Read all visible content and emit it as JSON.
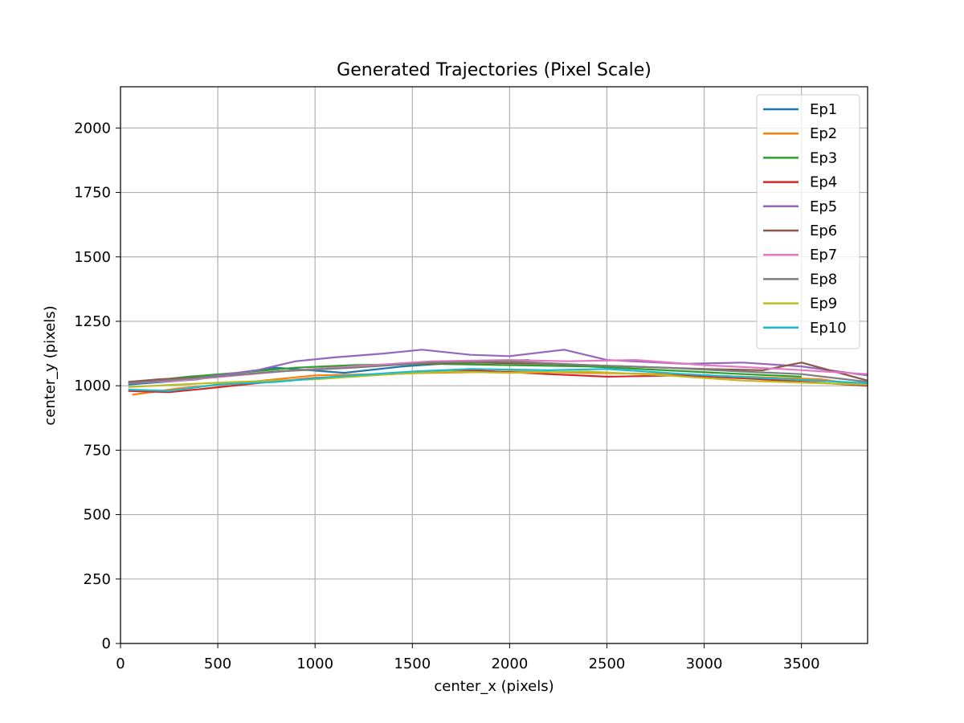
{
  "chart_data": {
    "type": "line",
    "title": "Generated Trajectories (Pixel Scale)",
    "xlabel": "center_x (pixels)",
    "ylabel": "center_y (pixels)",
    "xlim": [
      0,
      3840
    ],
    "ylim": [
      0,
      2160
    ],
    "xticks": [
      0,
      500,
      1000,
      1500,
      2000,
      2500,
      3000,
      3500
    ],
    "yticks": [
      0,
      250,
      500,
      750,
      1000,
      1250,
      1500,
      1750,
      2000
    ],
    "grid": true,
    "legend_position": "top-right",
    "series": [
      {
        "name": "Ep1",
        "color": "#1f77b4",
        "x": [
          40,
          400,
          650,
          800,
          1150,
          1450,
          1750,
          2100
        ],
        "y": [
          1005,
          1025,
          1055,
          1070,
          1050,
          1075,
          1090,
          1100
        ]
      },
      {
        "name": "Ep2",
        "color": "#ff7f0e",
        "x": [
          60,
          300,
          600,
          800,
          1000,
          1300,
          1600,
          2000,
          2400,
          2800,
          3200,
          3600,
          3840
        ],
        "y": [
          965,
          990,
          1010,
          1025,
          1040,
          1045,
          1050,
          1055,
          1050,
          1045,
          1035,
          1025,
          1000
        ]
      },
      {
        "name": "Ep3",
        "color": "#2ca02c",
        "x": [
          40,
          350,
          600,
          900,
          1200,
          1600,
          2000,
          2400,
          2800,
          3200,
          3500
        ],
        "y": [
          1010,
          1035,
          1050,
          1070,
          1080,
          1085,
          1080,
          1075,
          1060,
          1045,
          1035
        ]
      },
      {
        "name": "Ep4",
        "color": "#d62728",
        "x": [
          40,
          250,
          450,
          700,
          1000,
          1400,
          1800,
          2200,
          2500,
          2900,
          3300,
          3840
        ],
        "y": [
          980,
          975,
          990,
          1010,
          1030,
          1045,
          1060,
          1045,
          1035,
          1040,
          1025,
          1000
        ]
      },
      {
        "name": "Ep5",
        "color": "#9467bd",
        "x": [
          40,
          400,
          700,
          900,
          1100,
          1350,
          1550,
          1800,
          2000,
          2280,
          2500,
          2900,
          3200,
          3500,
          3840
        ],
        "y": [
          1010,
          1030,
          1060,
          1095,
          1110,
          1125,
          1140,
          1120,
          1115,
          1140,
          1100,
          1085,
          1090,
          1075,
          1040
        ]
      },
      {
        "name": "Ep6",
        "color": "#8c564b",
        "x": [
          40,
          200,
          500,
          800,
          1100,
          1500,
          1800,
          2200,
          2600,
          3000,
          3300,
          3500,
          3840
        ],
        "y": [
          1015,
          1025,
          1035,
          1055,
          1070,
          1085,
          1090,
          1085,
          1075,
          1065,
          1060,
          1090,
          1020
        ]
      },
      {
        "name": "Ep7",
        "color": "#e377c2",
        "x": [
          40,
          300,
          600,
          900,
          1200,
          1600,
          2000,
          2300,
          2650,
          3000,
          3400,
          3840
        ],
        "y": [
          1010,
          1020,
          1040,
          1060,
          1075,
          1095,
          1100,
          1095,
          1100,
          1080,
          1065,
          1045
        ]
      },
      {
        "name": "Ep8",
        "color": "#7f7f7f",
        "x": [
          40,
          400,
          800,
          1200,
          1600,
          2000,
          2400,
          2800,
          3200,
          3500,
          3840
        ],
        "y": [
          1010,
          1030,
          1055,
          1070,
          1090,
          1095,
          1080,
          1070,
          1055,
          1045,
          1015
        ]
      },
      {
        "name": "Ep9",
        "color": "#bcbd22",
        "x": [
          40,
          300,
          600,
          1000,
          1400,
          1700,
          2000,
          2400,
          2800,
          3200,
          3600,
          3840
        ],
        "y": [
          995,
          1005,
          1015,
          1025,
          1045,
          1055,
          1050,
          1055,
          1040,
          1020,
          1010,
          1005
        ]
      },
      {
        "name": "Ep10",
        "color": "#17becf",
        "x": [
          40,
          250,
          500,
          800,
          1100,
          1500,
          1800,
          2200,
          2500,
          2900,
          3300,
          3840
        ],
        "y": [
          985,
          980,
          1005,
          1015,
          1035,
          1055,
          1065,
          1060,
          1065,
          1045,
          1030,
          1010
        ]
      }
    ]
  }
}
